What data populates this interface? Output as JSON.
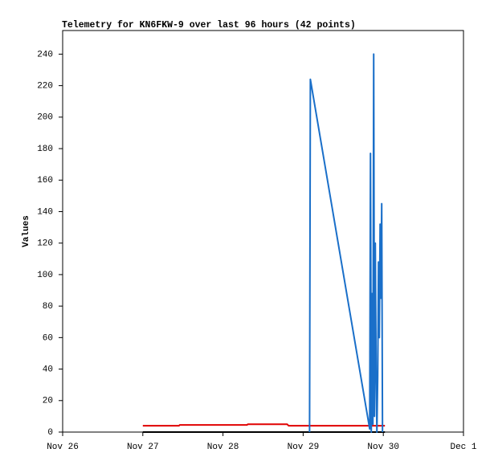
{
  "chart_data": {
    "type": "line",
    "title": "Telemetry for KN6FKW-9 over last 96 hours (42 points)",
    "ylabel": "Values",
    "xlim": [
      26,
      31
    ],
    "xticks": [
      {
        "value": 26,
        "label": "Nov 26"
      },
      {
        "value": 27,
        "label": "Nov 27"
      },
      {
        "value": 28,
        "label": "Nov 28"
      },
      {
        "value": 29,
        "label": "Nov 29"
      },
      {
        "value": 30,
        "label": "Nov 30"
      },
      {
        "value": 31,
        "label": "Dec 1"
      }
    ],
    "ylim": [
      0,
      255
    ],
    "yticks": [
      0,
      20,
      40,
      60,
      80,
      100,
      120,
      140,
      160,
      180,
      200,
      220,
      240
    ],
    "grid": false,
    "series": [
      {
        "color": "#000000",
        "x": [
          27.0,
          30.02
        ],
        "values": [
          0,
          0
        ]
      },
      {
        "color": "#e00000",
        "x": [
          27.0,
          27.45,
          27.46,
          28.3,
          28.31,
          28.8,
          28.82,
          30.02
        ],
        "values": [
          4,
          4,
          4.5,
          4.5,
          5,
          5,
          4,
          4
        ]
      },
      {
        "color": "#1a6fc9",
        "x": [
          29.08,
          29.09,
          29.83,
          29.84,
          29.85,
          29.86,
          29.87,
          29.88,
          29.89,
          29.9,
          29.91,
          29.92,
          29.93,
          29.94,
          29.95,
          29.96,
          29.97,
          29.98,
          29.99
        ],
        "values": [
          0,
          224,
          2,
          177,
          0,
          88,
          5,
          240,
          10,
          120,
          40,
          0,
          35,
          108,
          60,
          132,
          85,
          145,
          0
        ]
      }
    ]
  }
}
